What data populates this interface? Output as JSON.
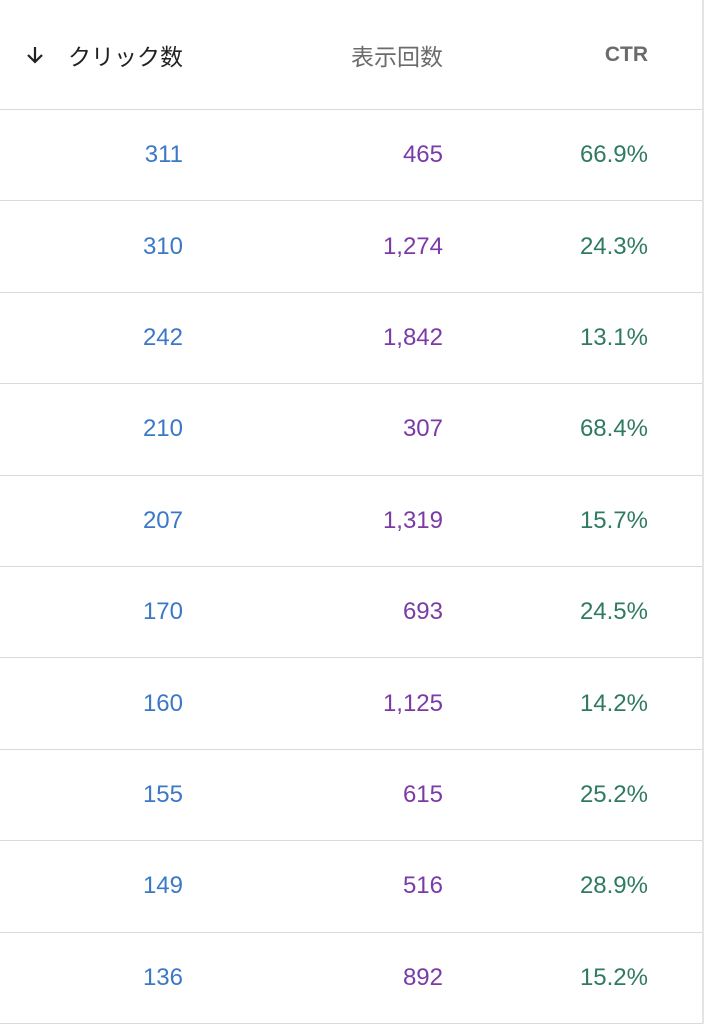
{
  "table": {
    "headers": [
      "クリック数",
      "表示回数",
      "CTR"
    ],
    "rows": [
      [
        "311",
        "465",
        "66.9%"
      ],
      [
        "310",
        "1,274",
        "24.3%"
      ],
      [
        "242",
        "1,842",
        "13.1%"
      ],
      [
        "210",
        "307",
        "68.4%"
      ],
      [
        "207",
        "1,319",
        "15.7%"
      ],
      [
        "170",
        "693",
        "24.5%"
      ],
      [
        "160",
        "1,125",
        "14.2%"
      ],
      [
        "155",
        "615",
        "25.2%"
      ],
      [
        "149",
        "516",
        "28.9%"
      ],
      [
        "136",
        "892",
        "15.2%"
      ]
    ]
  }
}
